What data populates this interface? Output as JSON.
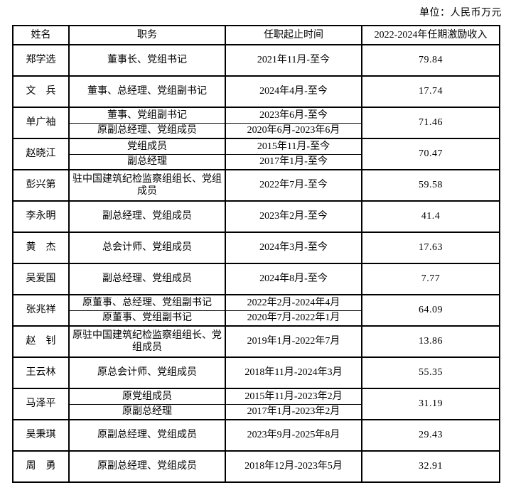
{
  "unit_label": "单位：人民币万元",
  "table": {
    "headers": [
      "姓名",
      "职务",
      "任职起止时间",
      "2022-2024年任期激励收入"
    ],
    "rows": [
      {
        "name": "郑学选",
        "income": "79.84",
        "entries": [
          {
            "position": "董事长、党组书记",
            "period": "2021年11月-至今"
          }
        ]
      },
      {
        "name": "文　兵",
        "income": "17.74",
        "entries": [
          {
            "position": "董事、总经理、党组副书记",
            "period": "2024年4月-至今"
          }
        ]
      },
      {
        "name": "单广袖",
        "income": "71.46",
        "entries": [
          {
            "position": "董事、党组副书记",
            "period": "2023年6月-至今"
          },
          {
            "position": "原副总经理、党组成员",
            "period": "2020年6月-2023年6月"
          }
        ]
      },
      {
        "name": "赵晓江",
        "income": "70.47",
        "entries": [
          {
            "position": "党组成员",
            "period": "2015年11月-至今"
          },
          {
            "position": "副总经理",
            "period": "2017年1月-至今"
          }
        ]
      },
      {
        "name": "彭兴第",
        "income": "59.58",
        "entries": [
          {
            "position": "驻中国建筑纪检监察组组长、党组成员",
            "period": "2022年7月-至今"
          }
        ]
      },
      {
        "name": "李永明",
        "income": "41.4",
        "entries": [
          {
            "position": "副总经理、党组成员",
            "period": "2023年2月-至今"
          }
        ]
      },
      {
        "name": "黄　杰",
        "income": "17.63",
        "entries": [
          {
            "position": "总会计师、党组成员",
            "period": "2024年3月-至今"
          }
        ]
      },
      {
        "name": "吴爱国",
        "income": "7.77",
        "entries": [
          {
            "position": "副总经理、党组成员",
            "period": "2024年8月-至今"
          }
        ]
      },
      {
        "name": "张兆祥",
        "income": "64.09",
        "entries": [
          {
            "position": "原董事、总经理、党组副书记",
            "period": "2022年2月-2024年4月"
          },
          {
            "position": "原董事、党组副书记",
            "period": "2020年7月-2022年1月"
          }
        ]
      },
      {
        "name": "赵　钊",
        "income": "13.86",
        "entries": [
          {
            "position": "原驻中国建筑纪检监察组组长、党组成员",
            "period": "2019年1月-2022年7月"
          }
        ]
      },
      {
        "name": "王云林",
        "income": "55.35",
        "entries": [
          {
            "position": "原总会计师、党组成员",
            "period": "2018年11月-2024年3月"
          }
        ]
      },
      {
        "name": "马泽平",
        "income": "31.19",
        "entries": [
          {
            "position": "原党组成员",
            "period": "2015年11月-2023年2月"
          },
          {
            "position": "原副总经理",
            "period": "2017年1月-2023年2月"
          }
        ]
      },
      {
        "name": "吴秉琪",
        "income": "29.43",
        "entries": [
          {
            "position": "原副总经理、党组成员",
            "period": "2023年9月-2025年8月"
          }
        ]
      },
      {
        "name": "周　勇",
        "income": "32.91",
        "entries": [
          {
            "position": "原副总经理、党组成员",
            "period": "2018年12月-2023年5月"
          }
        ]
      }
    ]
  }
}
